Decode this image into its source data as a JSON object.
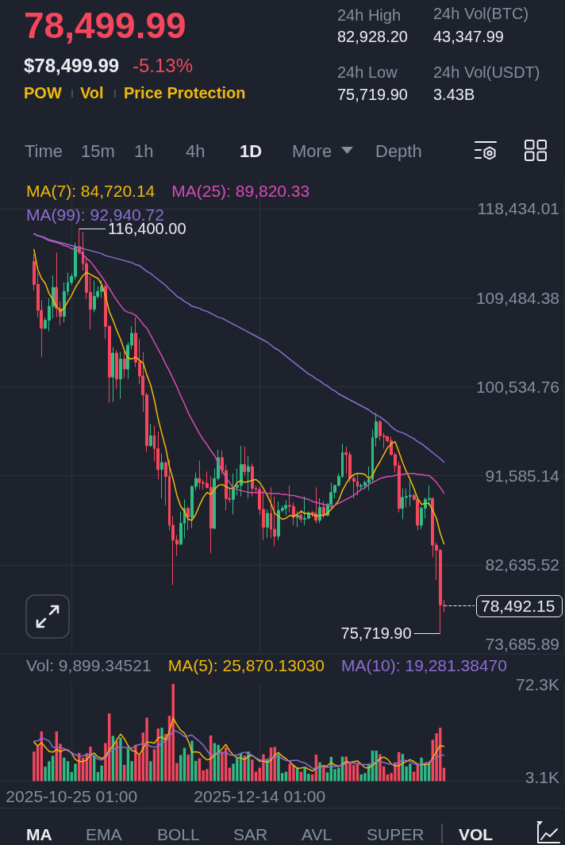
{
  "chart_data": [
    {
      "type": "other",
      "title": "78,499.99",
      "subtitle": "$78,499.99",
      "annotations": [
        "-5.13%",
        "POW",
        "Vol",
        "Price Protection",
        "24h High",
        "82,928.20",
        "24h Vol(BTC)",
        "43,347.99",
        "24h Low",
        "75,719.90",
        "24h Vol(USDT)",
        "3.43B",
        "Time",
        "15m",
        "1h",
        "4h",
        "1D",
        "More",
        "Depth"
      ]
    },
    {
      "type": "candlestick",
      "x": [
        "2025-10-15T01:00",
        "2025-10-16T01:00",
        "2025-10-17T01:00",
        "2025-10-18T01:00",
        "2025-10-19T01:00",
        "2025-10-20T01:00",
        "2025-10-21T01:00",
        "2025-10-22T01:00",
        "2025-10-23T01:00",
        "2025-10-24T01:00",
        "2025-10-25T01:00",
        "2025-10-26T01:00",
        "2025-10-27T01:00",
        "2025-10-28T01:00",
        "2025-10-29T01:00",
        "2025-10-30T01:00",
        "2025-10-31T01:00",
        "2025-11-01T01:00",
        "2025-11-02T01:00",
        "2025-11-03T01:00",
        "2025-11-04T01:00",
        "2025-11-05T01:00",
        "2025-11-06T01:00",
        "2025-11-07T01:00",
        "2025-11-08T01:00",
        "2025-11-09T01:00",
        "2025-11-10T01:00",
        "2025-11-11T01:00",
        "2025-11-12T01:00",
        "2025-11-13T01:00",
        "2025-11-14T01:00",
        "2025-11-15T01:00",
        "2025-11-16T01:00",
        "2025-11-17T01:00",
        "2025-11-18T01:00",
        "2025-11-19T01:00",
        "2025-11-20T01:00",
        "2025-11-21T01:00",
        "2025-11-22T01:00",
        "2025-11-23T01:00",
        "2025-11-24T01:00",
        "2025-11-25T01:00",
        "2025-11-26T01:00",
        "2025-11-27T01:00",
        "2025-11-28T01:00",
        "2025-11-29T01:00",
        "2025-11-30T01:00",
        "2025-12-01T01:00",
        "2025-12-02T01:00",
        "2025-12-03T01:00",
        "2025-12-04T01:00",
        "2025-12-05T01:00",
        "2025-12-06T01:00",
        "2025-12-07T01:00",
        "2025-12-08T01:00",
        "2025-12-09T01:00",
        "2025-12-10T01:00",
        "2025-12-11T01:00",
        "2025-12-12T01:00",
        "2025-12-13T01:00",
        "2025-12-14T01:00",
        "2025-12-15T01:00",
        "2025-12-16T01:00",
        "2025-12-17T01:00",
        "2025-12-18T01:00",
        "2025-12-19T01:00",
        "2025-12-20T01:00",
        "2025-12-21T01:00",
        "2025-12-22T01:00",
        "2025-12-23T01:00",
        "2025-12-24T01:00",
        "2025-12-25T01:00",
        "2025-12-26T01:00",
        "2025-12-27T01:00",
        "2025-12-28T01:00",
        "2025-12-29T01:00",
        "2025-12-30T01:00",
        "2025-12-31T01:00",
        "2026-01-01T01:00",
        "2026-01-02T01:00",
        "2026-01-03T01:00",
        "2026-01-04T01:00",
        "2026-01-05T01:00",
        "2026-01-06T01:00",
        "2026-01-07T01:00",
        "2026-01-08T01:00",
        "2026-01-09T01:00",
        "2026-01-10T01:00",
        "2026-01-11T01:00",
        "2026-01-12T01:00",
        "2026-01-13T01:00",
        "2026-01-14T01:00",
        "2026-01-15T01:00",
        "2026-01-16T01:00",
        "2026-01-17T01:00",
        "2026-01-18T01:00",
        "2026-01-19T01:00",
        "2026-01-20T01:00",
        "2026-01-21T01:00",
        "2026-01-22T01:00",
        "2026-01-23T01:00",
        "2026-01-24T01:00",
        "2026-01-25T01:00",
        "2026-01-26T01:00",
        "2026-01-27T01:00",
        "2026-01-28T01:00",
        "2026-01-29T01:00",
        "2026-01-30T01:00",
        "2026-01-31T01:00",
        "2026-02-01T01:00"
      ],
      "xlim": [
        "2025-10-06",
        "2026-03-05"
      ],
      "xticks": [
        {
          "value": "2025-10-25T01:00",
          "label": null
        },
        {
          "value": "2025-12-14T01:00",
          "label": null
        }
      ],
      "ohlc": [
        [
          113100,
          113900,
          110200,
          110800
        ],
        [
          110800,
          112000,
          107500,
          108200
        ],
        [
          108200,
          109200,
          103500,
          106400
        ],
        [
          106400,
          107500,
          106300,
          107200
        ],
        [
          107200,
          109400,
          106100,
          108600
        ],
        [
          108600,
          111700,
          107400,
          110500
        ],
        [
          110500,
          114000,
          107500,
          108400
        ],
        [
          108400,
          109100,
          106700,
          107600
        ],
        [
          107600,
          111000,
          107000,
          110100
        ],
        [
          110100,
          112000,
          109700,
          111000
        ],
        [
          111000,
          111900,
          110700,
          111600
        ],
        [
          111600,
          115000,
          111300,
          114600
        ],
        [
          114600,
          116400,
          113800,
          114100
        ],
        [
          114100,
          116100,
          112200,
          112900
        ],
        [
          112900,
          113600,
          109300,
          110000
        ],
        [
          110000,
          111600,
          106300,
          108300
        ],
        [
          108300,
          111200,
          108000,
          109600
        ],
        [
          109600,
          110600,
          109400,
          110100
        ],
        [
          110100,
          111200,
          109500,
          110600
        ],
        [
          110600,
          110800,
          105300,
          106600
        ],
        [
          106600,
          106700,
          98900,
          101500
        ],
        [
          101500,
          104500,
          99000,
          103900
        ],
        [
          103900,
          104200,
          100300,
          101300
        ],
        [
          101300,
          104000,
          99300,
          103300
        ],
        [
          103300,
          104100,
          101400,
          102300
        ],
        [
          102300,
          105000,
          101300,
          104700
        ],
        [
          104700,
          106600,
          104300,
          105900
        ],
        [
          105900,
          107500,
          102500,
          103000
        ],
        [
          103000,
          105300,
          100800,
          101600
        ],
        [
          101600,
          104000,
          98000,
          99700
        ],
        [
          99700,
          99900,
          94000,
          94600
        ],
        [
          94600,
          96800,
          94500,
          95600
        ],
        [
          95600,
          96600,
          93000,
          94300
        ],
        [
          94300,
          96000,
          91200,
          92200
        ],
        [
          92200,
          93800,
          89300,
          92900
        ],
        [
          92900,
          93000,
          88600,
          91500
        ],
        [
          91500,
          93200,
          86100,
          86600
        ],
        [
          86600,
          87500,
          80600,
          85100
        ],
        [
          85100,
          85600,
          83500,
          84700
        ],
        [
          84700,
          88000,
          84600,
          86800
        ],
        [
          86800,
          89200,
          85300,
          88300
        ],
        [
          88300,
          88500,
          86100,
          87400
        ],
        [
          87400,
          90600,
          86300,
          90500
        ],
        [
          90500,
          91900,
          90100,
          91300
        ],
        [
          91300,
          93100,
          90200,
          90900
        ],
        [
          90900,
          91200,
          90200,
          90800
        ],
        [
          90800,
          92000,
          90300,
          90400
        ],
        [
          90400,
          91500,
          83800,
          86300
        ],
        [
          86300,
          92300,
          86200,
          91300
        ],
        [
          91300,
          94200,
          91100,
          93400
        ],
        [
          93400,
          94100,
          91700,
          92100
        ],
        [
          92100,
          92700,
          88100,
          89300
        ],
        [
          89300,
          90300,
          88900,
          89200
        ],
        [
          89200,
          91800,
          87700,
          90400
        ],
        [
          90400,
          92300,
          89600,
          90600
        ],
        [
          90600,
          94600,
          89500,
          92700
        ],
        [
          92700,
          94500,
          91600,
          92000
        ],
        [
          92000,
          93600,
          89300,
          92500
        ],
        [
          92500,
          92800,
          89500,
          90300
        ],
        [
          90300,
          90600,
          89800,
          90200
        ],
        [
          90200,
          90500,
          87600,
          88200
        ],
        [
          88200,
          90100,
          85100,
          86400
        ],
        [
          86400,
          88200,
          85300,
          87800
        ],
        [
          87800,
          90400,
          85300,
          86200
        ],
        [
          86200,
          89500,
          84500,
          85500
        ],
        [
          85500,
          89000,
          85100,
          88100
        ],
        [
          88100,
          88600,
          87900,
          88300
        ],
        [
          88300,
          89100,
          87600,
          88600
        ],
        [
          88600,
          90600,
          87900,
          88500
        ],
        [
          88500,
          88900,
          86600,
          87400
        ],
        [
          87400,
          88000,
          86400,
          87600
        ],
        [
          87600,
          88200,
          86900,
          87200
        ],
        [
          87200,
          89500,
          86600,
          87300
        ],
        [
          87300,
          88000,
          87200,
          87800
        ],
        [
          87900,
          88000,
          87400,
          87800
        ],
        [
          87800,
          90400,
          86800,
          87100
        ],
        [
          87100,
          89300,
          86800,
          88400
        ],
        [
          88400,
          89000,
          87300,
          87600
        ],
        [
          87600,
          88800,
          87500,
          88700
        ],
        [
          88700,
          90900,
          88300,
          89900
        ],
        [
          89900,
          90700,
          89300,
          90600
        ],
        [
          90600,
          91800,
          90500,
          91500
        ],
        [
          91500,
          94800,
          91400,
          93900
        ],
        [
          93900,
          94500,
          91800,
          93700
        ],
        [
          93700,
          94000,
          90900,
          91300
        ],
        [
          91300,
          91700,
          89300,
          91000
        ],
        [
          91000,
          91900,
          89600,
          90500
        ],
        [
          90500,
          90800,
          90200,
          90600
        ],
        [
          90600,
          91100,
          90200,
          90900
        ],
        [
          90900,
          92500,
          90100,
          91200
        ],
        [
          91200,
          96200,
          90900,
          95400
        ],
        [
          95400,
          97900,
          94500,
          97000
        ],
        [
          97000,
          97200,
          95100,
          95600
        ],
        [
          95600,
          95900,
          94300,
          95500
        ],
        [
          95500,
          95600,
          94900,
          95100
        ],
        [
          95100,
          95500,
          93600,
          93700
        ],
        [
          93700,
          93900,
          91900,
          92600
        ],
        [
          92600,
          93000,
          87900,
          88300
        ],
        [
          88300,
          90300,
          87200,
          89400
        ],
        [
          89400,
          90300,
          88400,
          89500
        ],
        [
          89500,
          91100,
          88500,
          89600
        ],
        [
          89600,
          89800,
          89100,
          89200
        ],
        [
          89200,
          89400,
          86100,
          86600
        ],
        [
          86600,
          88500,
          86200,
          88300
        ],
        [
          88300,
          89400,
          87300,
          89200
        ],
        [
          89200,
          90600,
          88600,
          89300
        ],
        [
          89300,
          89400,
          83400,
          84600
        ],
        [
          84600,
          84900,
          81100,
          84100
        ],
        [
          84100,
          84200,
          75719.9,
          78600
        ],
        [
          78600,
          79100,
          77900,
          78492.15
        ]
      ],
      "colors": [
        "#f6465d",
        "#f6465d",
        "#f6465d",
        "#2ebd85",
        "#2ebd85",
        "#2ebd85",
        "#f6465d",
        "#f6465d",
        "#2ebd85",
        "#2ebd85",
        "#2ebd85",
        "#2ebd85",
        "#f6465d",
        "#f6465d",
        "#f6465d",
        "#f6465d",
        "#2ebd85",
        "#2ebd85",
        "#2ebd85",
        "#f6465d",
        "#f6465d",
        "#2ebd85",
        "#f6465d",
        "#2ebd85",
        "#f6465d",
        "#2ebd85",
        "#2ebd85",
        "#f6465d",
        "#f6465d",
        "#f6465d",
        "#f6465d",
        "#2ebd85",
        "#f6465d",
        "#f6465d",
        "#2ebd85",
        "#f6465d",
        "#f6465d",
        "#f6465d",
        "#f6465d",
        "#2ebd85",
        "#2ebd85",
        "#f6465d",
        "#2ebd85",
        "#2ebd85",
        "#f6465d",
        "#f6465d",
        "#f6465d",
        "#f6465d",
        "#2ebd85",
        "#2ebd85",
        "#f6465d",
        "#f6465d",
        "#f6465d",
        "#2ebd85",
        "#2ebd85",
        "#2ebd85",
        "#f6465d",
        "#2ebd85",
        "#f6465d",
        "#f6465d",
        "#f6465d",
        "#f6465d",
        "#2ebd85",
        "#f6465d",
        "#f6465d",
        "#2ebd85",
        "#2ebd85",
        "#2ebd85",
        "#f6465d",
        "#f6465d",
        "#2ebd85",
        "#f6465d",
        "#2ebd85",
        "#2ebd85",
        "#f6465d",
        "#f6465d",
        "#2ebd85",
        "#f6465d",
        "#2ebd85",
        "#2ebd85",
        "#2ebd85",
        "#2ebd85",
        "#2ebd85",
        "#f6465d",
        "#f6465d",
        "#f6465d",
        "#f6465d",
        "#2ebd85",
        "#2ebd85",
        "#2ebd85",
        "#2ebd85",
        "#2ebd85",
        "#f6465d",
        "#f6465d",
        "#f6465d",
        "#f6465d",
        "#f6465d",
        "#f6465d",
        "#2ebd85",
        "#2ebd85",
        "#2ebd85",
        "#f6465d",
        "#f6465d",
        "#2ebd85",
        "#2ebd85",
        "#2ebd85",
        "#f6465d",
        "#f6465d",
        "#f6465d",
        "#f6465d"
      ],
      "series": [
        {
          "name": "MA(7): 84,720.14",
          "type": "line",
          "color": "#f0b90b",
          "values": [
            114300,
            112300,
            111400,
            110900,
            109900,
            109300,
            108600,
            108100,
            108400,
            109100,
            109700,
            110500,
            111100,
            111700,
            112000,
            111800,
            111600,
            111400,
            110800,
            109700,
            108100,
            107200,
            106200,
            105300,
            104200,
            103400,
            103300,
            103500,
            103200,
            102900,
            101700,
            100700,
            99200,
            97300,
            95800,
            94400,
            92500,
            91200,
            89600,
            88500,
            88000,
            87200,
            87100,
            87700,
            88600,
            89400,
            89900,
            89700,
            90200,
            90600,
            90700,
            90500,
            90300,
            90300,
            90900,
            91100,
            90900,
            91000,
            91100,
            91200,
            90900,
            90300,
            89600,
            88800,
            87800,
            87500,
            87200,
            87300,
            87600,
            87500,
            87700,
            88000,
            87800,
            87800,
            87700,
            87500,
            87600,
            87600,
            87800,
            88200,
            88600,
            89100,
            90100,
            90800,
            91400,
            91700,
            91800,
            91800,
            91700,
            91300,
            91600,
            92400,
            93000,
            93700,
            94400,
            94800,
            95000,
            94000,
            92900,
            92000,
            91200,
            90300,
            89300,
            88700,
            88800,
            88800,
            88100,
            87300,
            85800,
            84720.14
          ]
        },
        {
          "name": "MA(25): 89,820.33",
          "type": "line",
          "color": "#d64cb4",
          "values": [
            115900,
            115700,
            115600,
            115400,
            115200,
            115100,
            115000,
            114900,
            114700,
            114600,
            114400,
            114300,
            114100,
            113800,
            113400,
            113100,
            112600,
            112100,
            111600,
            111000,
            110400,
            109800,
            109200,
            108700,
            108200,
            108000,
            107900,
            107700,
            107300,
            106800,
            106400,
            105700,
            105000,
            104300,
            103600,
            102800,
            102100,
            101300,
            100500,
            99600,
            98800,
            97900,
            97200,
            96500,
            95800,
            95200,
            94700,
            94100,
            93600,
            92800,
            92100,
            91400,
            90900,
            90300,
            90200,
            90100,
            90000,
            89900,
            89900,
            89900,
            89900,
            89900,
            89800,
            89800,
            89800,
            89800,
            89700,
            89700,
            89600,
            89600,
            89500,
            89400,
            89300,
            89200,
            89000,
            88900,
            88800,
            88700,
            88600,
            88500,
            88600,
            88800,
            89000,
            89200,
            89400,
            89600,
            89900,
            90200,
            90400,
            90700,
            90900,
            91100,
            91300,
            91400,
            91500,
            91500,
            91600,
            91700,
            91700,
            91800,
            91800,
            91800,
            91700,
            91700,
            91600,
            91600,
            91300,
            90900,
            90400,
            89820.33
          ]
        },
        {
          "name": "MA(99): 92,940.72",
          "type": "line",
          "color": "#8c6ed2",
          "values": [
            115900,
            115700,
            115600,
            115500,
            115300,
            115200,
            115100,
            115000,
            114900,
            114800,
            114700,
            114600,
            114500,
            114400,
            114300,
            114200,
            114100,
            114000,
            113900,
            113700,
            113600,
            113500,
            113400,
            113300,
            113200,
            113100,
            113000,
            112800,
            112700,
            112400,
            112100,
            111900,
            111600,
            111300,
            111000,
            110700,
            110300,
            110000,
            109600,
            109400,
            109100,
            108900,
            108600,
            108500,
            108400,
            108200,
            108100,
            107900,
            107700,
            107500,
            107400,
            107200,
            107000,
            106800,
            106600,
            106400,
            106200,
            106000,
            105800,
            105600,
            105400,
            105200,
            105000,
            104700,
            104400,
            104200,
            103900,
            103600,
            103300,
            103000,
            102700,
            102400,
            102100,
            101800,
            101600,
            101300,
            101100,
            100800,
            100600,
            100300,
            100100,
            99800,
            99600,
            99400,
            99200,
            99000,
            98800,
            98600,
            98400,
            98200,
            97900,
            97700,
            97500,
            97200,
            96900,
            96500,
            96200,
            96000,
            95900,
            95700,
            95500,
            95300,
            95000,
            94800,
            94500,
            94200,
            93900,
            93600,
            93300,
            92940.72
          ]
        }
      ],
      "ylim": [
        73685.89,
        121444
      ],
      "yticks": [
        {
          "value": 73685.89,
          "label": "73,685.89"
        },
        {
          "value": 82635.52,
          "label": "82,635.52"
        },
        {
          "value": 91585.14,
          "label": "91,585.14"
        },
        {
          "value": 100534.76,
          "label": "100,534.76"
        },
        {
          "value": 109484.38,
          "label": "109,484.38"
        },
        {
          "value": 118434.01,
          "label": "118,434.01"
        }
      ],
      "grid": true,
      "legend": "top left",
      "marker": "none",
      "tick_labels": "y",
      "ref_lines": [
        {
          "axis": "y",
          "value": 78492.15,
          "label": "78,492.15",
          "line_style": "dashed",
          "color": "#eaecef"
        }
      ],
      "annotations": [
        {
          "text": "116,400.00",
          "x": "2025-10-27T01:00",
          "y": 116400
        },
        {
          "text": "75,719.90",
          "x": "2026-01-31T01:00",
          "y": 75719.9
        }
      ]
    },
    {
      "type": "bar",
      "x": [
        "2025-10-15T01:00",
        "2025-10-16T01:00",
        "2025-10-17T01:00",
        "2025-10-18T01:00",
        "2025-10-19T01:00",
        "2025-10-20T01:00",
        "2025-10-21T01:00",
        "2025-10-22T01:00",
        "2025-10-23T01:00",
        "2025-10-24T01:00",
        "2025-10-25T01:00",
        "2025-10-26T01:00",
        "2025-10-27T01:00",
        "2025-10-28T01:00",
        "2025-10-29T01:00",
        "2025-10-30T01:00",
        "2025-10-31T01:00",
        "2025-11-01T01:00",
        "2025-11-02T01:00",
        "2025-11-03T01:00",
        "2025-11-04T01:00",
        "2025-11-05T01:00",
        "2025-11-06T01:00",
        "2025-11-07T01:00",
        "2025-11-08T01:00",
        "2025-11-09T01:00",
        "2025-11-10T01:00",
        "2025-11-11T01:00",
        "2025-11-12T01:00",
        "2025-11-13T01:00",
        "2025-11-14T01:00",
        "2025-11-15T01:00",
        "2025-11-16T01:00",
        "2025-11-17T01:00",
        "2025-11-18T01:00",
        "2025-11-19T01:00",
        "2025-11-20T01:00",
        "2025-11-21T01:00",
        "2025-11-22T01:00",
        "2025-11-23T01:00",
        "2025-11-24T01:00",
        "2025-11-25T01:00",
        "2025-11-26T01:00",
        "2025-11-27T01:00",
        "2025-11-28T01:00",
        "2025-11-29T01:00",
        "2025-11-30T01:00",
        "2025-12-01T01:00",
        "2025-12-02T01:00",
        "2025-12-03T01:00",
        "2025-12-04T01:00",
        "2025-12-05T01:00",
        "2025-12-06T01:00",
        "2025-12-07T01:00",
        "2025-12-08T01:00",
        "2025-12-09T01:00",
        "2025-12-10T01:00",
        "2025-12-11T01:00",
        "2025-12-12T01:00",
        "2025-12-13T01:00",
        "2025-12-14T01:00",
        "2025-12-15T01:00",
        "2025-12-16T01:00",
        "2025-12-17T01:00",
        "2025-12-18T01:00",
        "2025-12-19T01:00",
        "2025-12-20T01:00",
        "2025-12-21T01:00",
        "2025-12-22T01:00",
        "2025-12-23T01:00",
        "2025-12-24T01:00",
        "2025-12-25T01:00",
        "2025-12-26T01:00",
        "2025-12-27T01:00",
        "2025-12-28T01:00",
        "2025-12-29T01:00",
        "2025-12-30T01:00",
        "2025-12-31T01:00",
        "2026-01-01T01:00",
        "2026-01-02T01:00",
        "2026-01-03T01:00",
        "2026-01-04T01:00",
        "2026-01-05T01:00",
        "2026-01-06T01:00",
        "2026-01-07T01:00",
        "2026-01-08T01:00",
        "2026-01-09T01:00",
        "2026-01-10T01:00",
        "2026-01-11T01:00",
        "2026-01-12T01:00",
        "2026-01-13T01:00",
        "2026-01-14T01:00",
        "2026-01-15T01:00",
        "2026-01-16T01:00",
        "2026-01-17T01:00",
        "2026-01-18T01:00",
        "2026-01-19T01:00",
        "2026-01-20T01:00",
        "2026-01-21T01:00",
        "2026-01-22T01:00",
        "2026-01-23T01:00",
        "2026-01-24T01:00",
        "2026-01-25T01:00",
        "2026-01-26T01:00",
        "2026-01-27T01:00",
        "2026-01-28T01:00",
        "2026-01-29T01:00",
        "2026-01-30T01:00",
        "2026-01-31T01:00",
        "2026-02-01T01:00"
      ],
      "xlim": [
        "2025-10-06",
        "2026-03-05"
      ],
      "xticks": [
        {
          "value": "2025-10-25T01:00",
          "label": "2025-10-25 01:00"
        },
        {
          "value": "2025-12-14T01:00",
          "label": "2025-12-14 01:00"
        }
      ],
      "series": [
        {
          "name": "Vol: 9,899.34521",
          "type": "bar",
          "colors": [
            "#f6465d",
            "#f6465d",
            "#f6465d",
            "#2ebd85",
            "#2ebd85",
            "#2ebd85",
            "#f6465d",
            "#f6465d",
            "#2ebd85",
            "#2ebd85",
            "#2ebd85",
            "#2ebd85",
            "#f6465d",
            "#f6465d",
            "#f6465d",
            "#f6465d",
            "#2ebd85",
            "#2ebd85",
            "#2ebd85",
            "#f6465d",
            "#f6465d",
            "#2ebd85",
            "#f6465d",
            "#2ebd85",
            "#f6465d",
            "#2ebd85",
            "#2ebd85",
            "#f6465d",
            "#f6465d",
            "#f6465d",
            "#f6465d",
            "#2ebd85",
            "#f6465d",
            "#f6465d",
            "#2ebd85",
            "#f6465d",
            "#f6465d",
            "#f6465d",
            "#f6465d",
            "#2ebd85",
            "#2ebd85",
            "#f6465d",
            "#2ebd85",
            "#2ebd85",
            "#f6465d",
            "#f6465d",
            "#f6465d",
            "#f6465d",
            "#2ebd85",
            "#2ebd85",
            "#f6465d",
            "#f6465d",
            "#f6465d",
            "#2ebd85",
            "#2ebd85",
            "#2ebd85",
            "#f6465d",
            "#2ebd85",
            "#f6465d",
            "#f6465d",
            "#f6465d",
            "#f6465d",
            "#2ebd85",
            "#f6465d",
            "#f6465d",
            "#2ebd85",
            "#2ebd85",
            "#2ebd85",
            "#f6465d",
            "#f6465d",
            "#2ebd85",
            "#f6465d",
            "#2ebd85",
            "#2ebd85",
            "#f6465d",
            "#f6465d",
            "#2ebd85",
            "#f6465d",
            "#2ebd85",
            "#2ebd85",
            "#2ebd85",
            "#2ebd85",
            "#2ebd85",
            "#f6465d",
            "#f6465d",
            "#f6465d",
            "#f6465d",
            "#2ebd85",
            "#2ebd85",
            "#2ebd85",
            "#2ebd85",
            "#2ebd85",
            "#f6465d",
            "#f6465d",
            "#f6465d",
            "#f6465d",
            "#f6465d",
            "#f6465d",
            "#2ebd85",
            "#2ebd85",
            "#2ebd85",
            "#f6465d",
            "#f6465d",
            "#2ebd85",
            "#2ebd85",
            "#2ebd85",
            "#f6465d",
            "#f6465d",
            "#f6465d",
            "#f6465d"
          ],
          "values": [
            22000,
            26000,
            37000,
            10800,
            14800,
            18900,
            37000,
            27800,
            17500,
            14800,
            6700,
            13000,
            21000,
            17500,
            20800,
            25600,
            19400,
            6700,
            11600,
            28300,
            50400,
            33700,
            29700,
            32400,
            12100,
            24300,
            14800,
            27000,
            19400,
            36100,
            47200,
            14800,
            23700,
            39100,
            39700,
            35100,
            48600,
            72300,
            13500,
            19400,
            24800,
            19700,
            30000,
            15000,
            17000,
            8000,
            9000,
            34000,
            28300,
            27000,
            22000,
            25000,
            10000,
            13000,
            17000,
            21000,
            19000,
            22000,
            16000,
            7000,
            10000,
            20000,
            16000,
            25000,
            25500,
            20000,
            6000,
            7000,
            13000,
            12000,
            10000,
            7000,
            10000,
            5500,
            5000,
            19700,
            14000,
            12000,
            6500,
            18000,
            9000,
            10000,
            18200,
            18300,
            14000,
            12000,
            13000,
            5000,
            6000,
            13000,
            22700,
            22700,
            20000,
            11000,
            5000,
            6000,
            14000,
            21600,
            20200,
            11000,
            13000,
            7000,
            12000,
            17500,
            13000,
            13000,
            30800,
            35600,
            39700,
            9899.34521
          ]
        },
        {
          "name": "MA(5): 25,870.13030",
          "type": "line",
          "color": "#f0b90b",
          "values": [
            29000,
            26200,
            28600,
            25200,
            22100,
            21500,
            23700,
            21900,
            23200,
            23200,
            20800,
            16000,
            14600,
            14600,
            15800,
            19600,
            20900,
            18000,
            16800,
            18300,
            23300,
            26100,
            30700,
            34900,
            31700,
            26400,
            22700,
            22100,
            19500,
            24300,
            28900,
            28900,
            28200,
            32200,
            32900,
            30500,
            37200,
            47000,
            41800,
            37800,
            35700,
            29900,
            21500,
            21800,
            21300,
            17900,
            15800,
            16600,
            19300,
            21300,
            24100,
            27300,
            22500,
            19400,
            17400,
            17200,
            16000,
            18400,
            19000,
            17000,
            14800,
            15000,
            13800,
            15600,
            19300,
            21300,
            18500,
            16700,
            14300,
            11600,
            9600,
            9800,
            10400,
            8900,
            7500,
            9400,
            10800,
            11200,
            11400,
            14000,
            11900,
            11100,
            12300,
            14700,
            13900,
            14500,
            15100,
            12500,
            10000,
            9800,
            11900,
            13900,
            16900,
            17900,
            16300,
            12900,
            11200,
            11500,
            13400,
            14600,
            16000,
            14600,
            12600,
            12100,
            12500,
            12500,
            17300,
            22000,
            26400,
            25870.1303
          ]
        },
        {
          "name": "MA(10): 19,281.38470",
          "type": "line",
          "color": "#8c6ed2",
          "values": [
            29800,
            29900,
            32100,
            31200,
            29900,
            25300,
            25000,
            25200,
            24200,
            22700,
            21100,
            19800,
            18200,
            18900,
            19500,
            20200,
            18400,
            16300,
            15700,
            17100,
            21400,
            23500,
            24400,
            25900,
            25000,
            24900,
            24400,
            26400,
            27200,
            28000,
            27700,
            25800,
            25200,
            25900,
            28600,
            29700,
            33100,
            37600,
            37000,
            35300,
            33100,
            33600,
            34200,
            31800,
            29500,
            26800,
            22900,
            19000,
            20500,
            21300,
            21000,
            21500,
            19500,
            19300,
            19300,
            20600,
            21600,
            20400,
            19200,
            17200,
            16000,
            15500,
            16100,
            17300,
            18200,
            18100,
            16800,
            15300,
            15000,
            15500,
            15500,
            14200,
            13600,
            11600,
            9600,
            9500,
            10300,
            10800,
            10200,
            10800,
            10700,
            11000,
            11800,
            13100,
            14000,
            13200,
            13100,
            12400,
            12400,
            11900,
            13200,
            14500,
            14700,
            13900,
            13000,
            12400,
            12500,
            14200,
            15600,
            15400,
            14500,
            12900,
            12100,
            12700,
            13500,
            14200,
            15900,
            17300,
            19300,
            19281.3847
          ]
        }
      ],
      "ylim": [
        0,
        72300
      ],
      "yticks": [
        {
          "value": 3100,
          "label": "3.1K"
        },
        {
          "value": 72300,
          "label": "72.3K"
        }
      ],
      "grid": "x",
      "legend": "top",
      "marker": "none"
    },
    {
      "type": "other",
      "annotations": [
        "MA",
        "EMA",
        "BOLL",
        "SAR",
        "AVL",
        "SUPER",
        "VOL"
      ]
    }
  ]
}
